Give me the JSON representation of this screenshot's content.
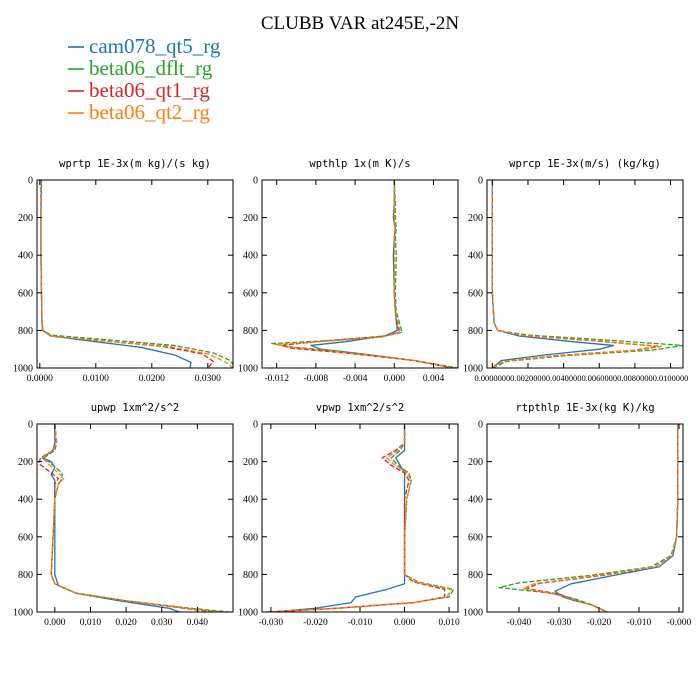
{
  "figure": {
    "title": "CLUBB VAR at245E,-2N",
    "legend": [
      {
        "label": "cam078_qt5_rg",
        "color": "#1f77b4",
        "dash": "solid"
      },
      {
        "label": "beta06_dflt_rg",
        "color": "#2ca02c",
        "dash": "dashed"
      },
      {
        "label": "beta06_qt1_rg",
        "color": "#d62728",
        "dash": "dashed"
      },
      {
        "label": "beta06_qt2_rg",
        "color": "#ff7f0e",
        "dash": "dashed"
      }
    ]
  },
  "chart_data": [
    {
      "type": "line",
      "title": "wprtp  1E-3x(m kg)/(s kg)",
      "xlim": [
        -0.0005,
        0.0345
      ],
      "ylim": [
        1000,
        0
      ],
      "xticks": [
        0,
        0.01,
        0.02,
        0.03
      ],
      "xtick_labels": [
        "0.0000",
        "0.0100",
        "0.0200",
        "0.0300"
      ],
      "yticks": [
        0,
        200,
        400,
        600,
        800,
        1000
      ],
      "ytick_labels": [
        "0",
        "200",
        "400",
        "600",
        "800",
        "1000"
      ],
      "series": [
        {
          "name": "cam078_qt5_rg",
          "x": [
            0.0003,
            0.0002,
            0.0002,
            0.0003,
            0.0004,
            0.0005,
            0.002,
            0.01,
            0.018,
            0.024,
            0.027,
            0.0268
          ],
          "y": [
            0,
            200,
            400,
            600,
            760,
            800,
            830,
            860,
            890,
            930,
            970,
            1000
          ]
        },
        {
          "name": "beta06_dflt_rg",
          "x": [
            0.0002,
            0.0002,
            0.0002,
            0.0003,
            0.0004,
            0.0006,
            0.002,
            0.012,
            0.024,
            0.031,
            0.034,
            0.035
          ],
          "y": [
            0,
            200,
            400,
            600,
            760,
            800,
            825,
            850,
            880,
            920,
            960,
            1000
          ]
        },
        {
          "name": "beta06_qt1_rg",
          "x": [
            0.0002,
            0.0002,
            0.0002,
            0.0003,
            0.0004,
            0.0005,
            0.002,
            0.011,
            0.022,
            0.029,
            0.031,
            0.03
          ],
          "y": [
            0,
            200,
            400,
            600,
            760,
            800,
            830,
            855,
            885,
            925,
            965,
            1000
          ]
        },
        {
          "name": "beta06_qt2_rg",
          "x": [
            0.0002,
            0.0002,
            0.0002,
            0.0003,
            0.0004,
            0.0005,
            0.002,
            0.011,
            0.023,
            0.03,
            0.033,
            0.0345
          ],
          "y": [
            0,
            200,
            400,
            600,
            760,
            800,
            830,
            855,
            885,
            925,
            965,
            1000
          ]
        }
      ]
    },
    {
      "type": "line",
      "title": "wpthlp  1x(m K)/s",
      "xlim": [
        -0.0135,
        0.0065
      ],
      "ylim": [
        1000,
        0
      ],
      "xticks": [
        -0.012,
        -0.008,
        -0.004,
        0,
        0.004
      ],
      "xtick_labels": [
        "-0.012",
        "-0.008",
        "-0.004",
        "0.000",
        "0.004"
      ],
      "yticks": [
        0,
        200,
        400,
        600,
        800,
        1000
      ],
      "ytick_labels": [
        "0",
        "200",
        "400",
        "600",
        "800",
        "1000"
      ],
      "series": [
        {
          "name": "cam078_qt5_rg",
          "x": [
            0,
            0,
            -0.0001,
            0.0001,
            0,
            -0.0001,
            0,
            0.0001,
            0.0003,
            -0.001,
            -0.005,
            -0.0085,
            -0.0075,
            -0.004,
            0.002,
            0.006
          ],
          "y": [
            0,
            120,
            200,
            260,
            300,
            400,
            600,
            700,
            800,
            830,
            860,
            880,
            900,
            920,
            960,
            1000
          ]
        },
        {
          "name": "beta06_dflt_rg",
          "x": [
            0,
            0.0001,
            0.0001,
            0.0002,
            0.0001,
            0.0002,
            0.0001,
            0.0002,
            0.0008,
            -0.001,
            -0.007,
            -0.0125,
            -0.011,
            -0.005,
            0.002,
            0.0065
          ],
          "y": [
            0,
            120,
            200,
            260,
            300,
            400,
            600,
            700,
            810,
            830,
            855,
            870,
            885,
            915,
            960,
            1000
          ]
        },
        {
          "name": "beta06_qt1_rg",
          "x": [
            0,
            0,
            0,
            0.0001,
            0,
            0,
            0,
            0.0001,
            0.0005,
            -0.0015,
            -0.008,
            -0.0115,
            -0.0105,
            -0.005,
            0.002,
            0.006
          ],
          "y": [
            0,
            120,
            200,
            260,
            300,
            400,
            600,
            700,
            810,
            835,
            860,
            880,
            895,
            920,
            960,
            1000
          ]
        },
        {
          "name": "beta06_qt2_rg",
          "x": [
            0,
            0,
            0,
            0.0001,
            0,
            0,
            0,
            0.0001,
            0.0006,
            -0.0012,
            -0.0075,
            -0.012,
            -0.0105,
            -0.005,
            0.002,
            0.0062
          ],
          "y": [
            0,
            120,
            200,
            260,
            300,
            400,
            600,
            700,
            810,
            835,
            860,
            875,
            890,
            918,
            960,
            1000
          ]
        }
      ]
    },
    {
      "type": "line",
      "title": "wprcp  1E-3x(m/s) (kg/kg)",
      "xlim": [
        -0.0003,
        0.0107
      ],
      "ylim": [
        1000,
        0
      ],
      "xticks": [
        0,
        0.002,
        0.004,
        0.006,
        0.008,
        0.01
      ],
      "xtick_labels": [
        "0.0000000",
        "0.0020000",
        "0.0040000",
        "0.0060000",
        "0.0080000",
        "0.0100000"
      ],
      "yticks": [
        0,
        200,
        400,
        600,
        800,
        1000
      ],
      "ytick_labels": [
        "0",
        "200",
        "400",
        "600",
        "800",
        "1000"
      ],
      "series": [
        {
          "name": "cam078_qt5_rg",
          "x": [
            0,
            0,
            0,
            0,
            0.0001,
            0.0003,
            0.0015,
            0.0045,
            0.0068,
            0.006,
            0.003,
            0.0005,
            0
          ],
          "y": [
            0,
            200,
            400,
            600,
            760,
            800,
            830,
            860,
            880,
            900,
            930,
            960,
            1000
          ]
        },
        {
          "name": "beta06_dflt_rg",
          "x": [
            0,
            0,
            0,
            0,
            0.0001,
            0.0003,
            0.002,
            0.007,
            0.0107,
            0.009,
            0.004,
            0.0008,
            0
          ],
          "y": [
            0,
            200,
            400,
            600,
            760,
            800,
            825,
            855,
            880,
            905,
            935,
            965,
            1000
          ]
        },
        {
          "name": "beta06_qt1_rg",
          "x": [
            0,
            0,
            0,
            0,
            0.0001,
            0.0003,
            0.0018,
            0.006,
            0.0093,
            0.008,
            0.0035,
            0.0006,
            0
          ],
          "y": [
            0,
            200,
            400,
            600,
            760,
            800,
            828,
            858,
            885,
            905,
            935,
            965,
            1000
          ]
        },
        {
          "name": "beta06_qt2_rg",
          "x": [
            0,
            0,
            0,
            0,
            0.0001,
            0.0003,
            0.0018,
            0.0062,
            0.0095,
            0.0082,
            0.0036,
            0.0006,
            0
          ],
          "y": [
            0,
            200,
            400,
            600,
            760,
            800,
            828,
            858,
            885,
            905,
            935,
            965,
            1000
          ]
        }
      ]
    },
    {
      "type": "line",
      "title": "upwp  1xm^2/s^2",
      "xlim": [
        -0.005,
        0.05
      ],
      "ylim": [
        1000,
        0
      ],
      "xticks": [
        0,
        0.01,
        0.02,
        0.03,
        0.04
      ],
      "xtick_labels": [
        "0.000",
        "0.010",
        "0.020",
        "0.030",
        "0.040"
      ],
      "yticks": [
        0,
        200,
        400,
        600,
        800,
        1000
      ],
      "ytick_labels": [
        "0",
        "200",
        "400",
        "600",
        "800",
        "1000"
      ],
      "series": [
        {
          "name": "cam078_qt5_rg",
          "x": [
            0,
            0,
            -0.0005,
            -0.0035,
            -0.001,
            0,
            -0.001,
            0,
            0,
            0,
            0,
            0.001,
            0.006,
            0.018,
            0.032,
            0.035
          ],
          "y": [
            0,
            100,
            140,
            180,
            200,
            230,
            270,
            300,
            400,
            600,
            800,
            860,
            900,
            940,
            980,
            1000
          ]
        },
        {
          "name": "beta06_dflt_rg",
          "x": [
            0,
            0.0005,
            0,
            -0.003,
            -0.0005,
            0.002,
            0.002,
            0.001,
            0,
            -0.0005,
            -0.001,
            0,
            0.006,
            0.02,
            0.038,
            0.049
          ],
          "y": [
            0,
            100,
            140,
            180,
            220,
            260,
            290,
            320,
            400,
            600,
            800,
            850,
            900,
            940,
            980,
            1000
          ]
        },
        {
          "name": "beta06_qt1_rg",
          "x": [
            0,
            0.0005,
            -0.0005,
            -0.004,
            -0.0045,
            -0.001,
            0.001,
            0,
            0,
            -0.0005,
            -0.001,
            0,
            0.006,
            0.02,
            0.036,
            0.045
          ],
          "y": [
            0,
            100,
            140,
            180,
            210,
            260,
            290,
            320,
            400,
            600,
            800,
            850,
            900,
            940,
            980,
            1000
          ]
        },
        {
          "name": "beta06_qt2_rg",
          "x": [
            0,
            0.0005,
            -0.0005,
            -0.0035,
            -0.0015,
            0.001,
            0.0025,
            0.001,
            0,
            -0.0005,
            -0.001,
            0,
            0.006,
            0.02,
            0.037,
            0.047
          ],
          "y": [
            0,
            100,
            140,
            180,
            220,
            260,
            290,
            320,
            400,
            600,
            800,
            850,
            900,
            940,
            980,
            1000
          ]
        }
      ]
    },
    {
      "type": "line",
      "title": "vpwp  1xm^2/s^2",
      "xlim": [
        -0.032,
        0.012
      ],
      "ylim": [
        1000,
        0
      ],
      "xticks": [
        -0.03,
        -0.02,
        -0.01,
        0,
        0.01
      ],
      "xtick_labels": [
        "-0.030",
        "-0.020",
        "-0.010",
        "0.000",
        "0.010"
      ],
      "yticks": [
        0,
        200,
        400,
        600,
        800,
        1000
      ],
      "ytick_labels": [
        "0",
        "200",
        "400",
        "600",
        "800",
        "1000"
      ],
      "series": [
        {
          "name": "cam078_qt5_rg",
          "x": [
            0,
            0,
            0,
            -0.002,
            -0.001,
            0,
            0,
            0,
            0,
            0,
            0,
            -0.004,
            -0.011,
            -0.012,
            -0.02,
            -0.03
          ],
          "y": [
            0,
            100,
            140,
            180,
            220,
            260,
            300,
            400,
            600,
            800,
            850,
            880,
            920,
            950,
            980,
            1000
          ]
        },
        {
          "name": "beta06_dflt_rg",
          "x": [
            0,
            0,
            -0.001,
            -0.003,
            -0.0015,
            0.001,
            0.0015,
            0.0005,
            0,
            0,
            0.003,
            0.011,
            0.01,
            0.002,
            -0.015,
            -0.031
          ],
          "y": [
            0,
            100,
            140,
            180,
            220,
            260,
            300,
            400,
            600,
            800,
            840,
            880,
            920,
            950,
            980,
            1000
          ]
        },
        {
          "name": "beta06_qt1_rg",
          "x": [
            0,
            0,
            -0.002,
            -0.005,
            -0.003,
            0,
            0.001,
            0,
            0,
            0,
            0.002,
            0.009,
            0.009,
            0.002,
            -0.015,
            -0.03
          ],
          "y": [
            0,
            100,
            140,
            180,
            220,
            260,
            300,
            400,
            600,
            800,
            840,
            880,
            920,
            950,
            980,
            1000
          ]
        },
        {
          "name": "beta06_qt2_rg",
          "x": [
            0,
            0,
            -0.0015,
            -0.004,
            -0.002,
            0.0005,
            0.0015,
            0.0005,
            0,
            0,
            0.0025,
            0.0105,
            0.0095,
            0.002,
            -0.015,
            -0.031
          ],
          "y": [
            0,
            100,
            140,
            180,
            220,
            260,
            300,
            400,
            600,
            800,
            840,
            880,
            920,
            950,
            980,
            1000
          ]
        }
      ]
    },
    {
      "type": "line",
      "title": "rtpthlp  1E-3x(kg K)/kg",
      "xlim": [
        -0.048,
        0.001
      ],
      "ylim": [
        1000,
        0
      ],
      "xticks": [
        -0.04,
        -0.03,
        -0.02,
        -0.01,
        0
      ],
      "xtick_labels": [
        "-0.040",
        "-0.030",
        "-0.020",
        "-0.010",
        "-0.000"
      ],
      "yticks": [
        0,
        200,
        400,
        600,
        800,
        1000
      ],
      "ytick_labels": [
        "0",
        "200",
        "400",
        "600",
        "800",
        "1000"
      ],
      "series": [
        {
          "name": "cam078_qt5_rg",
          "x": [
            -0.0003,
            -0.0003,
            -0.0003,
            -0.0006,
            -0.0015,
            -0.005,
            -0.015,
            -0.027,
            -0.031,
            -0.029,
            -0.026,
            -0.022,
            -0.018
          ],
          "y": [
            0,
            200,
            400,
            600,
            700,
            760,
            800,
            850,
            890,
            920,
            940,
            960,
            1000
          ]
        },
        {
          "name": "beta06_dflt_rg",
          "x": [
            -0.0003,
            -0.0003,
            -0.0003,
            -0.0006,
            -0.002,
            -0.007,
            -0.022,
            -0.04,
            -0.045,
            -0.032,
            -0.026,
            -0.022,
            -0.018
          ],
          "y": [
            0,
            200,
            400,
            600,
            700,
            760,
            805,
            845,
            870,
            900,
            930,
            960,
            1000
          ]
        },
        {
          "name": "beta06_qt1_rg",
          "x": [
            -0.0003,
            -0.0003,
            -0.0003,
            -0.0006,
            -0.0018,
            -0.006,
            -0.019,
            -0.035,
            -0.038,
            -0.03,
            -0.026,
            -0.022,
            -0.018
          ],
          "y": [
            0,
            200,
            400,
            600,
            700,
            760,
            805,
            848,
            875,
            905,
            935,
            962,
            1000
          ]
        },
        {
          "name": "beta06_qt2_rg",
          "x": [
            -0.0003,
            -0.0003,
            -0.0003,
            -0.0006,
            -0.0018,
            -0.006,
            -0.02,
            -0.036,
            -0.039,
            -0.031,
            -0.026,
            -0.022,
            -0.018
          ],
          "y": [
            0,
            200,
            400,
            600,
            700,
            760,
            805,
            848,
            875,
            905,
            935,
            962,
            1000
          ]
        }
      ]
    }
  ]
}
